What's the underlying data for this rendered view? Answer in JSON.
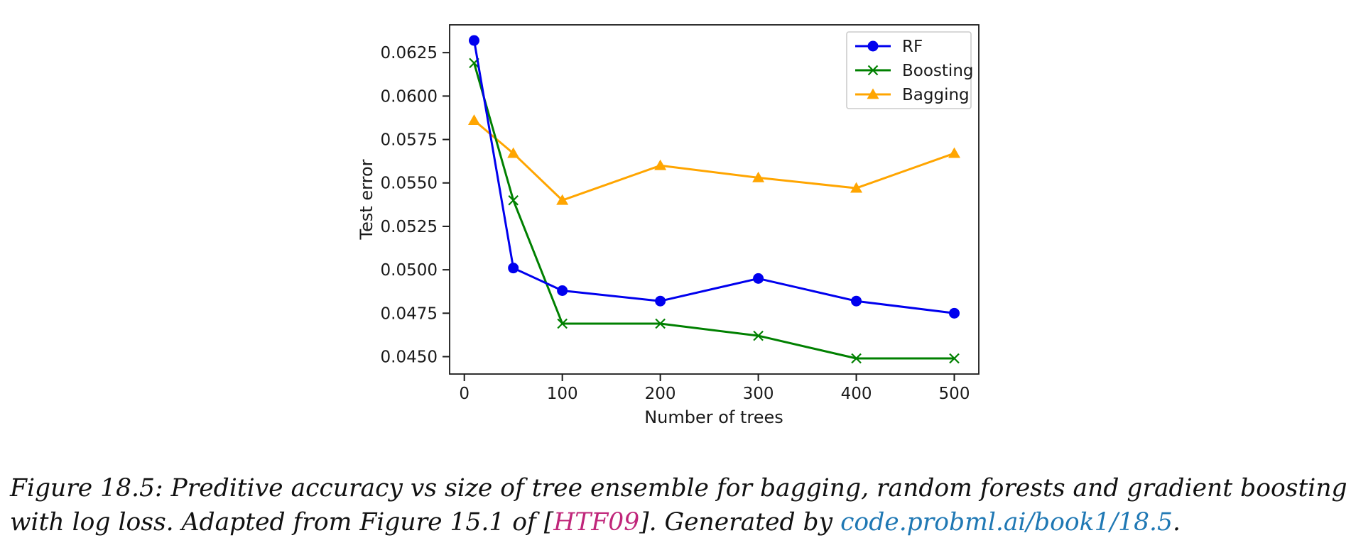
{
  "chart_data": {
    "type": "line",
    "title": "",
    "xlabel": "Number of trees",
    "ylabel": "Test error",
    "xlim": [
      -15,
      525
    ],
    "ylim": [
      0.044,
      0.0641
    ],
    "xticks": [
      0,
      100,
      200,
      300,
      400,
      500
    ],
    "yticks": [
      0.045,
      0.0475,
      0.05,
      0.0525,
      0.055,
      0.0575,
      0.06,
      0.0625
    ],
    "ytick_labels": [
      "0.0450",
      "0.0475",
      "0.0500",
      "0.0525",
      "0.0550",
      "0.0575",
      "0.0600",
      "0.0625"
    ],
    "x": [
      10,
      50,
      100,
      200,
      300,
      400,
      500
    ],
    "series": [
      {
        "name": "RF",
        "color": "#0000ee",
        "marker": "circle",
        "values": [
          0.0632,
          0.0501,
          0.0488,
          0.0482,
          0.0495,
          0.0482,
          0.0475
        ]
      },
      {
        "name": "Boosting",
        "color": "#008000",
        "marker": "x",
        "values": [
          0.0619,
          0.054,
          0.0469,
          0.0469,
          0.0462,
          0.0449,
          0.0449
        ]
      },
      {
        "name": "Bagging",
        "color": "#ffa500",
        "marker": "triangle",
        "values": [
          0.0586,
          0.0567,
          0.054,
          0.056,
          0.0553,
          0.0547,
          0.0567
        ]
      }
    ],
    "grid": false,
    "legend_position": "top-right"
  },
  "caption": {
    "part1": "Figure 18.5: Preditive accuracy vs size of tree ensemble for bagging, random forests and gradient boosting",
    "part2": "with log loss. Adapted from Figure 15.1 of [",
    "citation": "HTF09",
    "part3": "]. Generated by ",
    "link": "code.probml.ai/book1/18.5",
    "part4": "."
  }
}
